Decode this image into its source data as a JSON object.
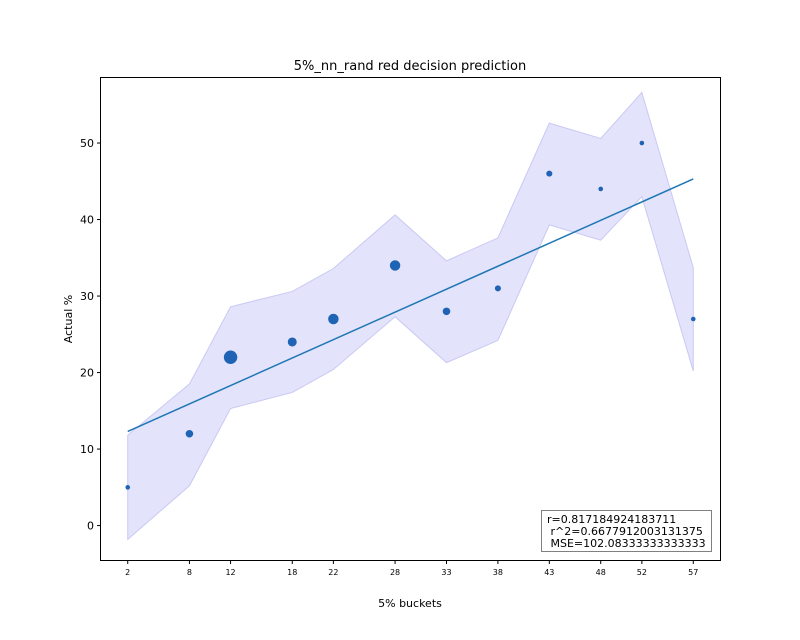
{
  "chart_data": {
    "type": "scatter",
    "title": "5%_nn_rand red decision prediction",
    "xlabel": "5% buckets",
    "ylabel": "Actual %",
    "x": [
      2,
      8,
      12,
      18,
      22,
      28,
      33,
      38,
      43,
      48,
      52,
      57
    ],
    "x_tick_labels": [
      "2",
      "8",
      "12",
      "18",
      "22",
      "28",
      "33",
      "38",
      "43",
      "48",
      "52",
      "57"
    ],
    "xlim": [
      -0.6,
      59.6
    ],
    "y": [
      5,
      12,
      22,
      24,
      27,
      34,
      28,
      31,
      46,
      44,
      50,
      27
    ],
    "point_weight": [
      1,
      2,
      4,
      2.5,
      3,
      3,
      2,
      1.5,
      1.5,
      1,
      1,
      1
    ],
    "band_lower": [
      -1.8,
      5.2,
      15.3,
      17.4,
      20.4,
      27.3,
      21.3,
      24.2,
      39.3,
      37.3,
      43,
      20.2
    ],
    "band_upper": [
      11.8,
      18.5,
      28.6,
      30.6,
      33.6,
      40.6,
      34.6,
      37.6,
      52.6,
      50.6,
      56.6,
      33.7
    ],
    "fit_line": {
      "x": [
        2,
        57
      ],
      "y": [
        12.3,
        45.3
      ]
    },
    "ylim": [
      -4.5,
      58.5
    ],
    "y_ticks": [
      0,
      10,
      20,
      30,
      40,
      50
    ],
    "grid": false,
    "colors": {
      "points": "#1f63b5",
      "fit_line": "#1f77b4",
      "band_fill": "#e3e3fb",
      "band_edge": "#c9c9f3"
    },
    "annotation": {
      "line1": "r=0.817184924183711",
      "line2": " r^2=0.6677912003131375",
      "line3": " MSE=102.08333333333333"
    }
  }
}
